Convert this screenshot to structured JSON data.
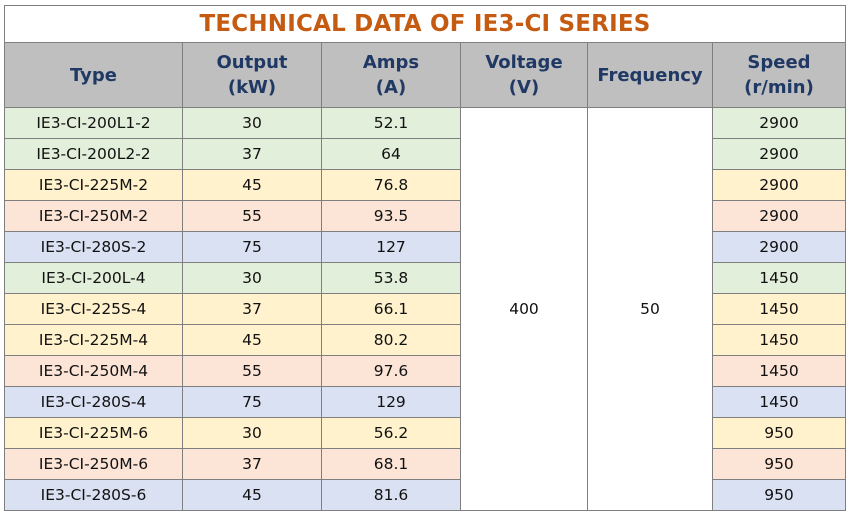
{
  "title": "TECHNICAL DATA OF IE3-CI SERIES",
  "headers": [
    {
      "line1": "Type",
      "line2": ""
    },
    {
      "line1": "Output",
      "line2": "(kW)"
    },
    {
      "line1": "Amps",
      "line2": "(A)"
    },
    {
      "line1": "Voltage",
      "line2": "(V)"
    },
    {
      "line1": "Frequency",
      "line2": ""
    },
    {
      "line1": "Speed",
      "line2": "(r/min)"
    }
  ],
  "voltage": "400",
  "frequency": "50",
  "colors": {
    "green": "#e2efda",
    "yellow": "#fff2cc",
    "peach": "#fce4d6",
    "blue": "#d9e1f2",
    "header": "#bfbfbf",
    "title": "#c55a11"
  },
  "rows": [
    {
      "type": "IE3-CI-200L1-2",
      "output": "30",
      "amps": "52.1",
      "speed": "2900",
      "color": "green"
    },
    {
      "type": "IE3-CI-200L2-2",
      "output": "37",
      "amps": "64",
      "speed": "2900",
      "color": "green"
    },
    {
      "type": "IE3-CI-225M-2",
      "output": "45",
      "amps": "76.8",
      "speed": "2900",
      "color": "yellow"
    },
    {
      "type": "IE3-CI-250M-2",
      "output": "55",
      "amps": "93.5",
      "speed": "2900",
      "color": "peach"
    },
    {
      "type": "IE3-CI-280S-2",
      "output": "75",
      "amps": "127",
      "speed": "2900",
      "color": "blue"
    },
    {
      "type": "IE3-CI-200L-4",
      "output": "30",
      "amps": "53.8",
      "speed": "1450",
      "color": "green"
    },
    {
      "type": "IE3-CI-225S-4",
      "output": "37",
      "amps": "66.1",
      "speed": "1450",
      "color": "yellow"
    },
    {
      "type": "IE3-CI-225M-4",
      "output": "45",
      "amps": "80.2",
      "speed": "1450",
      "color": "yellow"
    },
    {
      "type": "IE3-CI-250M-4",
      "output": "55",
      "amps": "97.6",
      "speed": "1450",
      "color": "peach"
    },
    {
      "type": "IE3-CI-280S-4",
      "output": "75",
      "amps": "129",
      "speed": "1450",
      "color": "blue"
    },
    {
      "type": "IE3-CI-225M-6",
      "output": "30",
      "amps": "56.2",
      "speed": "950",
      "color": "yellow"
    },
    {
      "type": "IE3-CI-250M-6",
      "output": "37",
      "amps": "68.1",
      "speed": "950",
      "color": "peach"
    },
    {
      "type": "IE3-CI-280S-6",
      "output": "45",
      "amps": "81.6",
      "speed": "950",
      "color": "blue"
    }
  ]
}
